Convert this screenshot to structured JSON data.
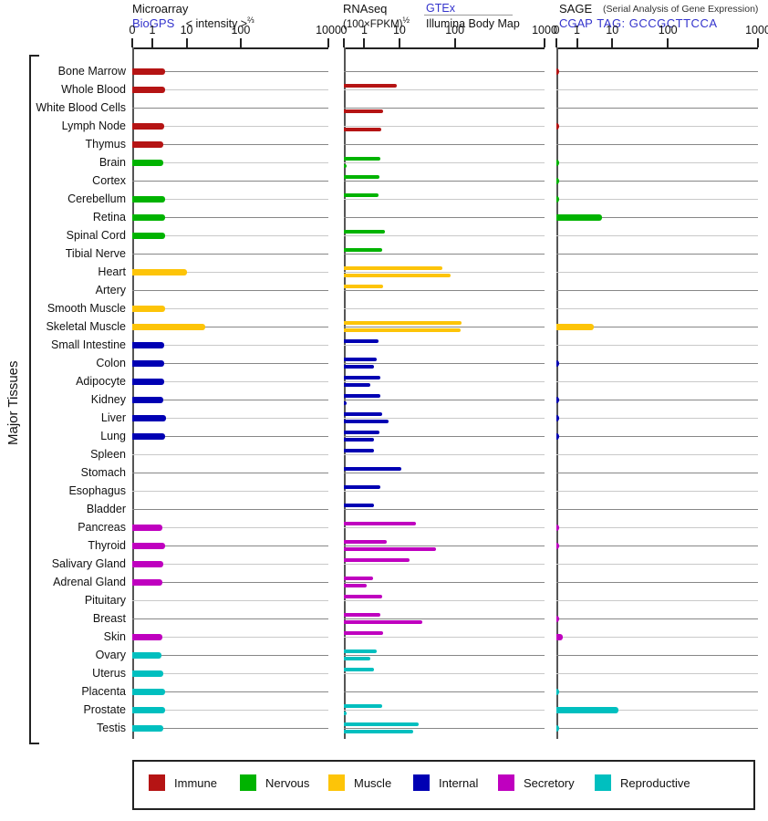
{
  "side_label": "Major Tissues",
  "header": {
    "microarray": {
      "title": "Microarray",
      "link": "BioGPS",
      "scale": "< intensity >",
      "scale_sup": "⅔"
    },
    "rnaseq": {
      "title": "RNAseq",
      "scale": "(100×FPKM)",
      "scale_sup": "½",
      "link": "GTEx",
      "source2": "Illumina Body Map"
    },
    "sage": {
      "title": "SAGE",
      "subtitle": "(Serial Analysis of Gene Expression)",
      "link": "CGAP",
      "tag": "TAG: GCCGCTTCCA"
    }
  },
  "axis": {
    "tick_labels": [
      "0",
      "1",
      "10",
      "100",
      "1000"
    ]
  },
  "legend": {
    "items": [
      {
        "label": "Immune",
        "key": "immune"
      },
      {
        "label": "Nervous",
        "key": "nervous"
      },
      {
        "label": "Muscle",
        "key": "muscle"
      },
      {
        "label": "Internal",
        "key": "internal"
      },
      {
        "label": "Secretory",
        "key": "secretory"
      },
      {
        "label": "Reproductive",
        "key": "reproductive"
      }
    ]
  },
  "colors": {
    "immune": "#b51414",
    "nervous": "#00b300",
    "muscle": "#fdc408",
    "internal": "#0000b3",
    "secretory": "#bf00bf",
    "reproductive": "#00bfbf",
    "link": "#3333cc",
    "grid_dark": "#878787",
    "grid_light": "#c9c9c9",
    "axis": "#222222"
  },
  "chart_data": {
    "type": "bar",
    "orientation": "horizontal",
    "panels": [
      "Microarray BioGPS < intensity >^(2/3)",
      "RNAseq GTEx / Illumina Body Map (100×FPKM)^(1/2)",
      "SAGE CGAP TAG: GCCGCTTCCA"
    ],
    "axis_ticks": [
      0,
      1,
      10,
      100,
      1000
    ],
    "axis_note": "compressed power scale; decade ticks 0/1/10/100/1000 sit at 0%,10%,28%,55%,100% of panel width",
    "ylabel": "Major Tissues",
    "rows": [
      {
        "tissue": "Bone Marrow",
        "category": "immune",
        "microarray": 2.4,
        "rnaseq_gtex": null,
        "rnaseq_illumina": null,
        "sage": 0.05
      },
      {
        "tissue": "Whole Blood",
        "category": "immune",
        "microarray": 2.4,
        "rnaseq_gtex": 8.3,
        "rnaseq_illumina": null,
        "sage": null
      },
      {
        "tissue": "White Blood Cells",
        "category": "immune",
        "microarray": null,
        "rnaseq_gtex": null,
        "rnaseq_illumina": 3.5,
        "sage": null
      },
      {
        "tissue": "Lymph Node",
        "category": "immune",
        "microarray": 2.2,
        "rnaseq_gtex": null,
        "rnaseq_illumina": 3.0,
        "sage": 0.05
      },
      {
        "tissue": "Thymus",
        "category": "immune",
        "microarray": 2.1,
        "rnaseq_gtex": null,
        "rnaseq_illumina": null,
        "sage": null
      },
      {
        "tissue": "Brain",
        "category": "nervous",
        "microarray": 2.1,
        "rnaseq_gtex": 2.8,
        "rnaseq_illumina": 0.05,
        "sage": 0.05
      },
      {
        "tissue": "Cortex",
        "category": "nervous",
        "microarray": null,
        "rnaseq_gtex": 2.7,
        "rnaseq_illumina": null,
        "sage": 0.05
      },
      {
        "tissue": "Cerebellum",
        "category": "nervous",
        "microarray": 2.3,
        "rnaseq_gtex": 2.5,
        "rnaseq_illumina": null,
        "sage": 0.05
      },
      {
        "tissue": "Retina",
        "category": "nervous",
        "microarray": 2.4,
        "rnaseq_gtex": null,
        "rnaseq_illumina": null,
        "sage": 5
      },
      {
        "tissue": "Spinal Cord",
        "category": "nervous",
        "microarray": 2.3,
        "rnaseq_gtex": 3.8,
        "rnaseq_illumina": null,
        "sage": null
      },
      {
        "tissue": "Tibial Nerve",
        "category": "nervous",
        "microarray": null,
        "rnaseq_gtex": 3.2,
        "rnaseq_illumina": null,
        "sage": null
      },
      {
        "tissue": "Heart",
        "category": "muscle",
        "microarray": 10,
        "rnaseq_gtex": 60,
        "rnaseq_illumina": 85,
        "sage": null
      },
      {
        "tissue": "Artery",
        "category": "muscle",
        "microarray": null,
        "rnaseq_gtex": 3.5,
        "rnaseq_illumina": null,
        "sage": null
      },
      {
        "tissue": "Smooth Muscle",
        "category": "muscle",
        "microarray": 2.4,
        "rnaseq_gtex": null,
        "rnaseq_illumina": null,
        "sage": null
      },
      {
        "tissue": "Skeletal Muscle",
        "category": "muscle",
        "microarray": 22,
        "rnaseq_gtex": 120,
        "rnaseq_illumina": 115,
        "sage": 3
      },
      {
        "tissue": "Small Intestine",
        "category": "internal",
        "microarray": 2.2,
        "rnaseq_gtex": 2.5,
        "rnaseq_illumina": null,
        "sage": null
      },
      {
        "tissue": "Colon",
        "category": "internal",
        "microarray": 2.2,
        "rnaseq_gtex": 2.2,
        "rnaseq_illumina": 1.9,
        "sage": 0.05
      },
      {
        "tissue": "Adipocyte",
        "category": "internal",
        "microarray": 2.2,
        "rnaseq_gtex": 2.9,
        "rnaseq_illumina": 1.5,
        "sage": null
      },
      {
        "tissue": "Kidney",
        "category": "internal",
        "microarray": 2.1,
        "rnaseq_gtex": 2.9,
        "rnaseq_illumina": 0.05,
        "sage": 0.05
      },
      {
        "tissue": "Liver",
        "category": "internal",
        "microarray": 2.5,
        "rnaseq_gtex": 3.3,
        "rnaseq_illumina": 4.9,
        "sage": 0.05
      },
      {
        "tissue": "Lung",
        "category": "internal",
        "microarray": 2.3,
        "rnaseq_gtex": 2.7,
        "rnaseq_illumina": 1.9,
        "sage": 0.05
      },
      {
        "tissue": "Spleen",
        "category": "internal",
        "microarray": null,
        "rnaseq_gtex": 1.9,
        "rnaseq_illumina": null,
        "sage": null
      },
      {
        "tissue": "Stomach",
        "category": "internal",
        "microarray": null,
        "rnaseq_gtex": 11,
        "rnaseq_illumina": null,
        "sage": null
      },
      {
        "tissue": "Esophagus",
        "category": "internal",
        "microarray": null,
        "rnaseq_gtex": 2.8,
        "rnaseq_illumina": null,
        "sage": null
      },
      {
        "tissue": "Bladder",
        "category": "internal",
        "microarray": null,
        "rnaseq_gtex": 1.9,
        "rnaseq_illumina": null,
        "sage": null
      },
      {
        "tissue": "Pancreas",
        "category": "secretory",
        "microarray": 2.0,
        "rnaseq_gtex": 20,
        "rnaseq_illumina": null,
        "sage": 0.05
      },
      {
        "tissue": "Thyroid",
        "category": "secretory",
        "microarray": 2.4,
        "rnaseq_gtex": 4.3,
        "rnaseq_illumina": 45,
        "sage": 0.05
      },
      {
        "tissue": "Salivary Gland",
        "category": "secretory",
        "microarray": 2.1,
        "rnaseq_gtex": 15,
        "rnaseq_illumina": null,
        "sage": null
      },
      {
        "tissue": "Adrenal Gland",
        "category": "secretory",
        "microarray": 2.0,
        "rnaseq_gtex": 1.8,
        "rnaseq_illumina": 1.2,
        "sage": null
      },
      {
        "tissue": "Pituitary",
        "category": "secretory",
        "microarray": null,
        "rnaseq_gtex": 3.2,
        "rnaseq_illumina": null,
        "sage": null
      },
      {
        "tissue": "Breast",
        "category": "secretory",
        "microarray": null,
        "rnaseq_gtex": 2.8,
        "rnaseq_illumina": 26,
        "sage": 0.05
      },
      {
        "tissue": "Skin",
        "category": "secretory",
        "microarray": 2.0,
        "rnaseq_gtex": 3.4,
        "rnaseq_illumina": null,
        "sage": 0.3
      },
      {
        "tissue": "Ovary",
        "category": "reproductive",
        "microarray": 1.9,
        "rnaseq_gtex": 2.2,
        "rnaseq_illumina": 1.5,
        "sage": null
      },
      {
        "tissue": "Uterus",
        "category": "reproductive",
        "microarray": 2.1,
        "rnaseq_gtex": 1.9,
        "rnaseq_illumina": null,
        "sage": null
      },
      {
        "tissue": "Placenta",
        "category": "reproductive",
        "microarray": 2.3,
        "rnaseq_gtex": null,
        "rnaseq_illumina": null,
        "sage": 0.05
      },
      {
        "tissue": "Prostate",
        "category": "reproductive",
        "microarray": 2.4,
        "rnaseq_gtex": 3.2,
        "rnaseq_illumina": 0.05,
        "sage": 13
      },
      {
        "tissue": "Testis",
        "category": "reproductive",
        "microarray": 2.1,
        "rnaseq_gtex": 22,
        "rnaseq_illumina": 18,
        "sage": 0.05
      }
    ]
  }
}
